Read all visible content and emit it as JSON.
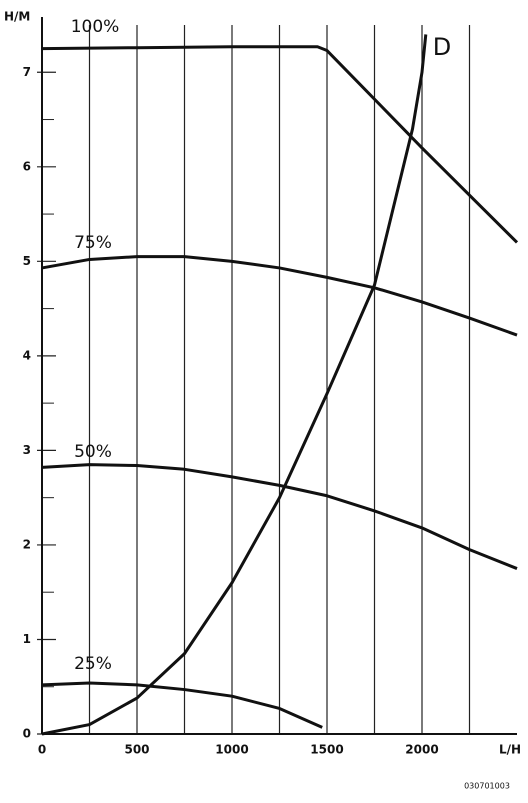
{
  "chart_data": {
    "type": "line",
    "x_label": "L/H",
    "y_label": "H/M",
    "footnote": "030701003",
    "xlim": [
      0,
      2500
    ],
    "ylim": [
      0,
      7.5
    ],
    "xticks": [
      0,
      500,
      1000,
      1500,
      2000
    ],
    "x_minor_ticks": [
      250,
      750,
      1250,
      1750,
      2250
    ],
    "yticks": [
      0,
      1,
      2,
      3,
      4,
      5,
      6,
      7
    ],
    "y_minor_ticks": [
      0.5,
      1.5,
      2.5,
      3.5,
      4.5,
      5.5,
      6.5
    ],
    "grid": true,
    "series": [
      {
        "name": "100%",
        "color": "#111111",
        "x": [
          0,
          500,
          1000,
          1450,
          1500,
          2000,
          2500
        ],
        "values": [
          7.25,
          7.26,
          7.27,
          7.27,
          7.23,
          6.2,
          5.2
        ]
      },
      {
        "name": "75%",
        "color": "#111111",
        "x": [
          0,
          250,
          500,
          750,
          1000,
          1250,
          1500,
          1750,
          2000,
          2250,
          2500
        ],
        "values": [
          4.93,
          5.02,
          5.05,
          5.05,
          5.0,
          4.93,
          4.83,
          4.72,
          4.57,
          4.4,
          4.22
        ]
      },
      {
        "name": "50%",
        "color": "#111111",
        "x": [
          0,
          250,
          500,
          750,
          1000,
          1250,
          1500,
          1750,
          2000,
          2250,
          2500
        ],
        "values": [
          2.82,
          2.85,
          2.84,
          2.8,
          2.72,
          2.63,
          2.52,
          2.36,
          2.18,
          1.95,
          1.75
        ]
      },
      {
        "name": "25%",
        "color": "#111111",
        "x": [
          0,
          250,
          500,
          750,
          1000,
          1250,
          1475
        ],
        "values": [
          0.52,
          0.54,
          0.52,
          0.47,
          0.4,
          0.27,
          0.07
        ]
      },
      {
        "name": "D",
        "color": "#111111",
        "x": [
          0,
          250,
          500,
          750,
          1000,
          1250,
          1500,
          1750,
          1950,
          2000,
          2020
        ],
        "values": [
          0,
          0.1,
          0.38,
          0.85,
          1.6,
          2.5,
          3.6,
          4.75,
          6.4,
          7.0,
          7.4
        ]
      }
    ]
  }
}
